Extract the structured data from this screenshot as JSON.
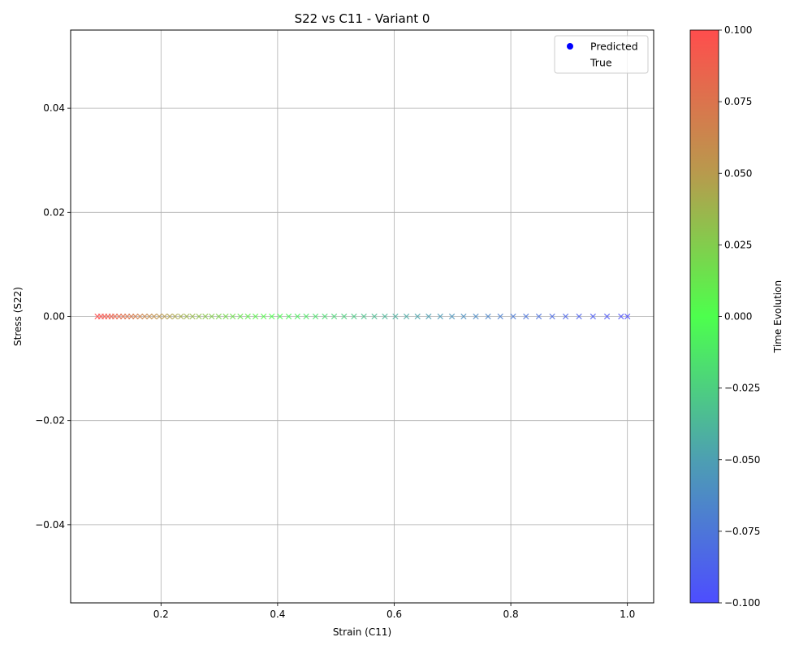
{
  "chart_data": {
    "type": "scatter",
    "title": "S22 vs C11 - Variant 0",
    "xlabel": "Strain (C11)",
    "ylabel": "Stress (S22)",
    "xlim": [
      0.045,
      1.045
    ],
    "ylim": [
      -0.055,
      0.055
    ],
    "xticks": [
      0.2,
      0.4,
      0.6,
      0.8,
      1.0
    ],
    "xtick_labels": [
      "0.2",
      "0.4",
      "0.6",
      "0.8",
      "1.0"
    ],
    "yticks": [
      -0.04,
      -0.02,
      0.0,
      0.02,
      0.04
    ],
    "ytick_labels": [
      "−0.04",
      "−0.02",
      "0.00",
      "0.02",
      "0.04"
    ],
    "grid": true,
    "legend": {
      "placement": "top-right",
      "entries": [
        {
          "label": "Predicted",
          "marker": "circle",
          "color": "#0000ff"
        },
        {
          "label": "True",
          "marker": "none",
          "color": "#ffffff"
        }
      ]
    },
    "series": [
      {
        "name": "True",
        "marker": "x",
        "x": [
          0.091,
          0.097,
          0.103,
          0.109,
          0.115,
          0.121,
          0.128,
          0.135,
          0.142,
          0.149,
          0.156,
          0.164,
          0.172,
          0.18,
          0.188,
          0.197,
          0.206,
          0.215,
          0.224,
          0.234,
          0.244,
          0.254,
          0.265,
          0.276,
          0.287,
          0.299,
          0.311,
          0.323,
          0.336,
          0.349,
          0.362,
          0.376,
          0.39,
          0.404,
          0.419,
          0.434,
          0.449,
          0.465,
          0.481,
          0.497,
          0.514,
          0.531,
          0.548,
          0.566,
          0.584,
          0.602,
          0.621,
          0.64,
          0.659,
          0.679,
          0.699,
          0.719,
          0.74,
          0.761,
          0.782,
          0.804,
          0.826,
          0.848,
          0.871,
          0.894,
          0.917,
          0.941,
          0.965,
          0.989,
          1.0
        ],
        "y": 0.0,
        "time_range": [
          0.1,
          -0.1
        ]
      }
    ],
    "colorbar": {
      "label": "Time Evolution",
      "range": [
        -0.1,
        0.1
      ],
      "ticks": [
        -0.1,
        -0.075,
        -0.05,
        -0.025,
        0.0,
        0.025,
        0.05,
        0.075,
        0.1
      ],
      "tick_labels": [
        "−0.100",
        "−0.075",
        "−0.050",
        "−0.025",
        "0.000",
        "0.025",
        "0.050",
        "0.075",
        "0.100"
      ],
      "colors": [
        "#4d4dff",
        "#4d9fb2",
        "#4dff4d",
        "#b89a4d",
        "#ff4d4d"
      ]
    }
  }
}
